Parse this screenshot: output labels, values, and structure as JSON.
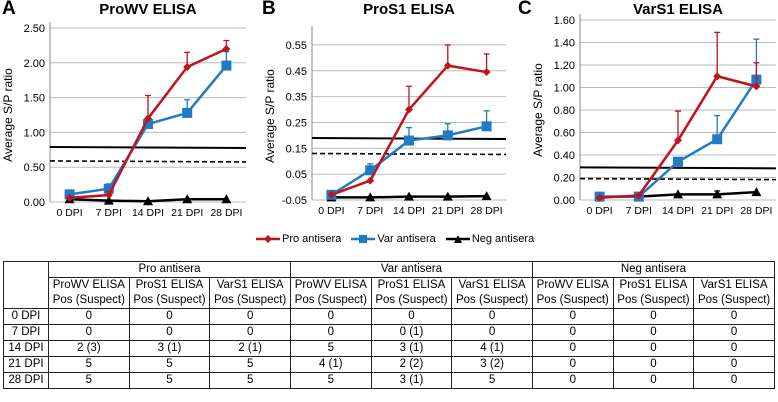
{
  "chart_data": [
    {
      "type": "line",
      "panel": "A",
      "title": "ProWV ELISA",
      "ylabel": "Average S/P ratio",
      "ylim": [
        0,
        2.5
      ],
      "yticks": [
        "0.00",
        "0.50",
        "1.00",
        "1.50",
        "2.00",
        "2.50"
      ],
      "categories": [
        "0 DPI",
        "7 DPI",
        "14 DPI",
        "21 DPI",
        "28 DPI"
      ],
      "series": [
        {
          "name": "Pro antisera",
          "values": [
            0.06,
            0.1,
            1.2,
            1.94,
            2.2
          ],
          "err": [
            0,
            0.05,
            0.33,
            0.21,
            0.12
          ]
        },
        {
          "name": "Var antisera",
          "values": [
            0.11,
            0.19,
            1.12,
            1.28,
            1.96
          ],
          "err": [
            0.02,
            0.07,
            0,
            0.19,
            0.2
          ]
        },
        {
          "name": "Neg antisera",
          "values": [
            0.04,
            0.02,
            0.01,
            0.04,
            0.04
          ],
          "err": [
            0,
            0,
            0,
            0,
            0
          ]
        }
      ],
      "cutoffs": {
        "solid": 0.79,
        "dashed": 0.59
      }
    },
    {
      "type": "line",
      "panel": "B",
      "title": "ProS1 ELISA",
      "ylabel": "Average S/P ratio",
      "ylim": [
        -0.05,
        0.6
      ],
      "yticks": [
        "-0.05",
        "0.05",
        "0.15",
        "0.25",
        "0.35",
        "0.45",
        "0.55"
      ],
      "categories": [
        "0 DPI",
        "7 DPI",
        "14 DPI",
        "21 DPI",
        "28 DPI"
      ],
      "series": [
        {
          "name": "Pro antisera",
          "values": [
            -0.03,
            0.025,
            0.3,
            0.47,
            0.445
          ],
          "err": [
            0,
            0,
            0.09,
            0.08,
            0.07
          ]
        },
        {
          "name": "Var antisera",
          "values": [
            -0.03,
            0.065,
            0.18,
            0.2,
            0.235
          ],
          "err": [
            0,
            0.025,
            0.05,
            0.045,
            0.06
          ]
        },
        {
          "name": "Neg antisera",
          "values": [
            -0.04,
            -0.04,
            -0.037,
            -0.037,
            -0.035
          ],
          "err": [
            0,
            0,
            0,
            0,
            0
          ]
        }
      ],
      "cutoffs": {
        "solid": 0.19,
        "dashed": 0.13
      }
    },
    {
      "type": "line",
      "panel": "C",
      "title": "VarS1 ELISA",
      "ylabel": "Average S/P ratio",
      "ylim": [
        0,
        1.6
      ],
      "yticks": [
        "0.00",
        "0.20",
        "0.40",
        "0.60",
        "0.80",
        "1.00",
        "1.20",
        "1.40",
        "1.60"
      ],
      "categories": [
        "0 DPI",
        "7 DPI",
        "14 DPI",
        "21 DPI",
        "28 DPI"
      ],
      "series": [
        {
          "name": "Pro antisera",
          "values": [
            0.02,
            0.04,
            0.53,
            1.1,
            1.01
          ],
          "err": [
            0,
            0,
            0.26,
            0.39,
            0.21
          ]
        },
        {
          "name": "Var antisera",
          "values": [
            0.03,
            0.03,
            0.34,
            0.54,
            1.07
          ],
          "err": [
            0,
            0,
            0,
            0.21,
            0.36
          ]
        },
        {
          "name": "Neg antisera",
          "values": [
            0.03,
            0.03,
            0.05,
            0.05,
            0.07
          ],
          "err": [
            0,
            0,
            0,
            0.03,
            0
          ]
        }
      ],
      "cutoffs": {
        "solid": 0.29,
        "dashed": 0.19
      }
    }
  ],
  "colors": {
    "pro": "#c0141c",
    "var": "#1f7bc4",
    "neg": "#000000"
  },
  "legend": [
    "Pro antisera",
    "Var antisera",
    "Neg antisera"
  ],
  "table": {
    "groups": [
      "Pro antisera",
      "Var antisera",
      "Neg antisera"
    ],
    "subheaders": [
      [
        "ProWV ELISA",
        "Pos (Suspect)"
      ],
      [
        "ProS1 ELISA",
        "Pos (Suspect)"
      ],
      [
        "VarS1 ELISA",
        "Pos (Suspect)"
      ],
      [
        "ProWV ELISA",
        "Pos (Suspect)"
      ],
      [
        "ProS1 ELISA",
        "Pos (Suspect)"
      ],
      [
        "VarS1 ELISA",
        "Pos (Suspect)"
      ],
      [
        "ProWV ELISA",
        "Pos (Suspect)"
      ],
      [
        "ProS1 ELISA",
        "Pos (Suspect)"
      ],
      [
        "VarS1 ELISA",
        "Pos (Suspect)"
      ]
    ],
    "rows": [
      {
        "label": "0 DPI",
        "cells": [
          "0",
          "0",
          "0",
          "0",
          "0",
          "0",
          "0",
          "0",
          "0"
        ]
      },
      {
        "label": "7 DPI",
        "cells": [
          "0",
          "0",
          "0",
          "0",
          "0 (1)",
          "0",
          "0",
          "0",
          "0"
        ]
      },
      {
        "label": "14 DPI",
        "cells": [
          "2 (3)",
          "3 (1)",
          "2 (1)",
          "5",
          "3 (1)",
          "4 (1)",
          "0",
          "0",
          "0"
        ]
      },
      {
        "label": "21 DPI",
        "cells": [
          "5",
          "5",
          "5",
          "4 (1)",
          "2 (2)",
          "3 (2)",
          "0",
          "0",
          "0"
        ]
      },
      {
        "label": "28 DPI",
        "cells": [
          "5",
          "5",
          "5",
          "5",
          "3 (1)",
          "5",
          "0",
          "0",
          "0"
        ]
      }
    ]
  }
}
